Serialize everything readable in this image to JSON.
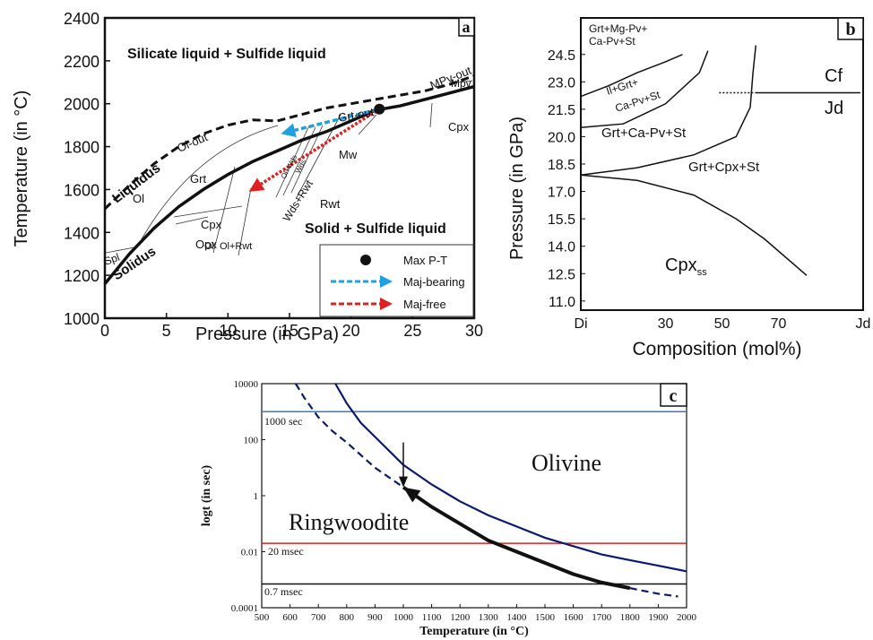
{
  "panels": {
    "a": {
      "label": "a",
      "xlabel": "Pressure (in GPa)",
      "ylabel": "Temperature (in °C)",
      "x_ticks": [
        "0",
        "5",
        "10",
        "15",
        "20",
        "25",
        "30"
      ],
      "y_ticks": [
        "1000",
        "1200",
        "1400",
        "1600",
        "1800",
        "2000",
        "2200",
        "2400"
      ],
      "region_labels": {
        "top": "Silicate liquid + Sulfide liquid",
        "bottom": "Solid + Sulfide liquid",
        "liquidus": "Liquidus",
        "solidus": "Solidus",
        "ol_out": "Ol-out",
        "grt_out": "Grt-out",
        "mpv_out": "MPv-out",
        "mpv": "Mpv",
        "cpx_top": "Cpx",
        "ol": "Ol",
        "grt": "Grt",
        "cpx": "Cpx",
        "opx": "Opx",
        "spl": "Spl",
        "ol2": "Ol",
        "ol_rwt": "Ol+Rwt",
        "mw": "Mw",
        "rwt": "Rwt",
        "wds_rwt": "Wds+Rwt",
        "ol_wds": "Ol+Wds",
        "wds": "Wds"
      },
      "legend": {
        "max_pt": "Max P-T",
        "maj_bearing": "Maj-bearing",
        "maj_free": "Maj-free"
      },
      "colors": {
        "maj_bearing": "#1fa0e0",
        "maj_free": "#e02020"
      }
    },
    "b": {
      "label": "b",
      "xlabel": "Composition (mol%)",
      "ylabel": "Pressure (in GPa)",
      "x_ticks": [
        "Di",
        "30",
        "50",
        "70",
        "Jd"
      ],
      "y_ticks": [
        "24.5",
        "23.0",
        "21.5",
        "20.0",
        "18.5",
        "17.0",
        "15.5",
        "14.0",
        "12.5",
        "11.0"
      ],
      "region_labels": {
        "grt_mgpv_1": "Grt+Mg-Pv+",
        "grt_mgpv_2": "Ca-Pv+St",
        "il_1": "Il+Grt+",
        "il_2": "Ca-Pv+St",
        "grt_capv": "Grt+Ca-Pv+St",
        "grt_cpx": "Grt+Cpx+St",
        "cf": "Cf",
        "jd": "Jd",
        "cpx": "Cpx",
        "cpx_sub": "ss"
      }
    },
    "c": {
      "label": "c",
      "xlabel": "Temperature (in °C)",
      "ylabel": "logt (in sec)",
      "x_ticks": [
        "500",
        "600",
        "700",
        "800",
        "900",
        "1000",
        "1100",
        "1200",
        "1300",
        "1400",
        "1500",
        "1600",
        "1700",
        "1800",
        "1900",
        "2000"
      ],
      "y_ticks": [
        "10000",
        "100",
        "1",
        "0.01",
        "0.0001"
      ],
      "labels": {
        "olivine": "Olivine",
        "ringwoodite": "Ringwoodite",
        "t1000": "1000 sec",
        "t20": "20 msec",
        "t07": "0.7 msec"
      },
      "colors": {
        "olivine": "#0a1a6e",
        "line_1000s": "#3a78c8",
        "line_20ms": "#e02020",
        "line_07ms": "#111111"
      }
    }
  },
  "chart_data": [
    {
      "type": "line",
      "panel": "a",
      "xlim": [
        0,
        30
      ],
      "ylim": [
        1000,
        2400
      ],
      "xlabel": "Pressure (in GPa)",
      "ylabel": "Temperature (in °C)",
      "series": [
        {
          "name": "Liquidus",
          "x": [
            0,
            2,
            4,
            6,
            8,
            10,
            12,
            14,
            16,
            18,
            20,
            22,
            24,
            26,
            28,
            30
          ],
          "y": [
            1510,
            1620,
            1720,
            1800,
            1860,
            1900,
            1925,
            1920,
            1950,
            1980,
            2000,
            2020,
            2040,
            2060,
            2090,
            2130
          ]
        },
        {
          "name": "Solidus",
          "x": [
            0,
            2,
            4,
            6,
            8,
            10,
            12,
            14,
            16,
            18,
            20,
            22,
            24,
            26,
            28,
            30
          ],
          "y": [
            1160,
            1300,
            1420,
            1520,
            1600,
            1670,
            1730,
            1780,
            1830,
            1870,
            1920,
            1970,
            1990,
            2020,
            2050,
            2080
          ]
        }
      ],
      "max_pt": {
        "x": 22.3,
        "y": 1975
      },
      "arrows": [
        {
          "name": "Maj-bearing",
          "from": [
            22.3,
            1975
          ],
          "to": [
            14.3,
            1860
          ]
        },
        {
          "name": "Maj-free",
          "from": [
            22.3,
            1975
          ],
          "to": [
            11.7,
            1590
          ]
        }
      ]
    },
    {
      "type": "line",
      "panel": "b",
      "xlim": [
        0,
        100
      ],
      "ylim": [
        10.5,
        26.5
      ],
      "xlabel": "Composition (mol%)",
      "ylabel": "Pressure (in GPa)",
      "series": [
        {
          "name": "phase-boundary-1",
          "x": [
            0,
            10,
            20,
            30,
            36
          ],
          "y": [
            22.2,
            22.8,
            23.5,
            24.1,
            24.5
          ]
        },
        {
          "name": "phase-boundary-2",
          "x": [
            0,
            15,
            30,
            42,
            45
          ],
          "y": [
            20.5,
            20.7,
            21.8,
            23.5,
            24.7
          ]
        },
        {
          "name": "phase-boundary-3",
          "x": [
            0,
            20,
            40,
            55,
            60,
            61,
            62
          ],
          "y": [
            17.9,
            18.3,
            19.0,
            20.0,
            21.6,
            23.5,
            25.0
          ]
        },
        {
          "name": "phase-boundary-4",
          "x": [
            0,
            20,
            40,
            55,
            65,
            80
          ],
          "y": [
            17.9,
            17.6,
            16.8,
            15.5,
            14.4,
            12.4
          ]
        },
        {
          "name": "cf-jd",
          "x": [
            62,
            99
          ],
          "y": [
            22.4,
            22.4
          ]
        }
      ]
    },
    {
      "type": "line",
      "panel": "c",
      "xlim": [
        500,
        2000
      ],
      "ylim": [
        -4,
        4
      ],
      "ylabel": "logt (in sec)",
      "xlabel": "Temperature (in °C)",
      "y_scale": "log10 seconds",
      "series": [
        {
          "name": "Olivine",
          "x": [
            760,
            800,
            850,
            900,
            1000,
            1100,
            1200,
            1300,
            1400,
            1500,
            1600,
            1700,
            1800,
            1900,
            2000
          ],
          "y": [
            4.0,
            3.3,
            2.6,
            2.1,
            1.1,
            0.4,
            -0.2,
            -0.7,
            -1.1,
            -1.5,
            -1.8,
            -2.1,
            -2.3,
            -2.5,
            -2.7
          ]
        },
        {
          "name": "Ringwoodite",
          "x": [
            620,
            650,
            700,
            750,
            800,
            900,
            1000,
            1100,
            1200,
            1300,
            1400,
            1500,
            1600,
            1700,
            1800,
            1900,
            1970
          ],
          "y": [
            4.0,
            3.5,
            2.8,
            2.3,
            1.9,
            1.0,
            0.3,
            -0.4,
            -1.0,
            -1.6,
            -2.0,
            -2.4,
            -2.8,
            -3.1,
            -3.3,
            -3.5,
            -3.6
          ]
        },
        {
          "name": "1000 sec",
          "x": [
            500,
            2000
          ],
          "y": [
            3,
            3
          ]
        },
        {
          "name": "20 msec",
          "x": [
            500,
            2000
          ],
          "y": [
            -1.7,
            -1.7
          ]
        },
        {
          "name": "0.7 msec",
          "x": [
            500,
            2000
          ],
          "y": [
            -3.15,
            -3.15
          ]
        }
      ]
    }
  ]
}
